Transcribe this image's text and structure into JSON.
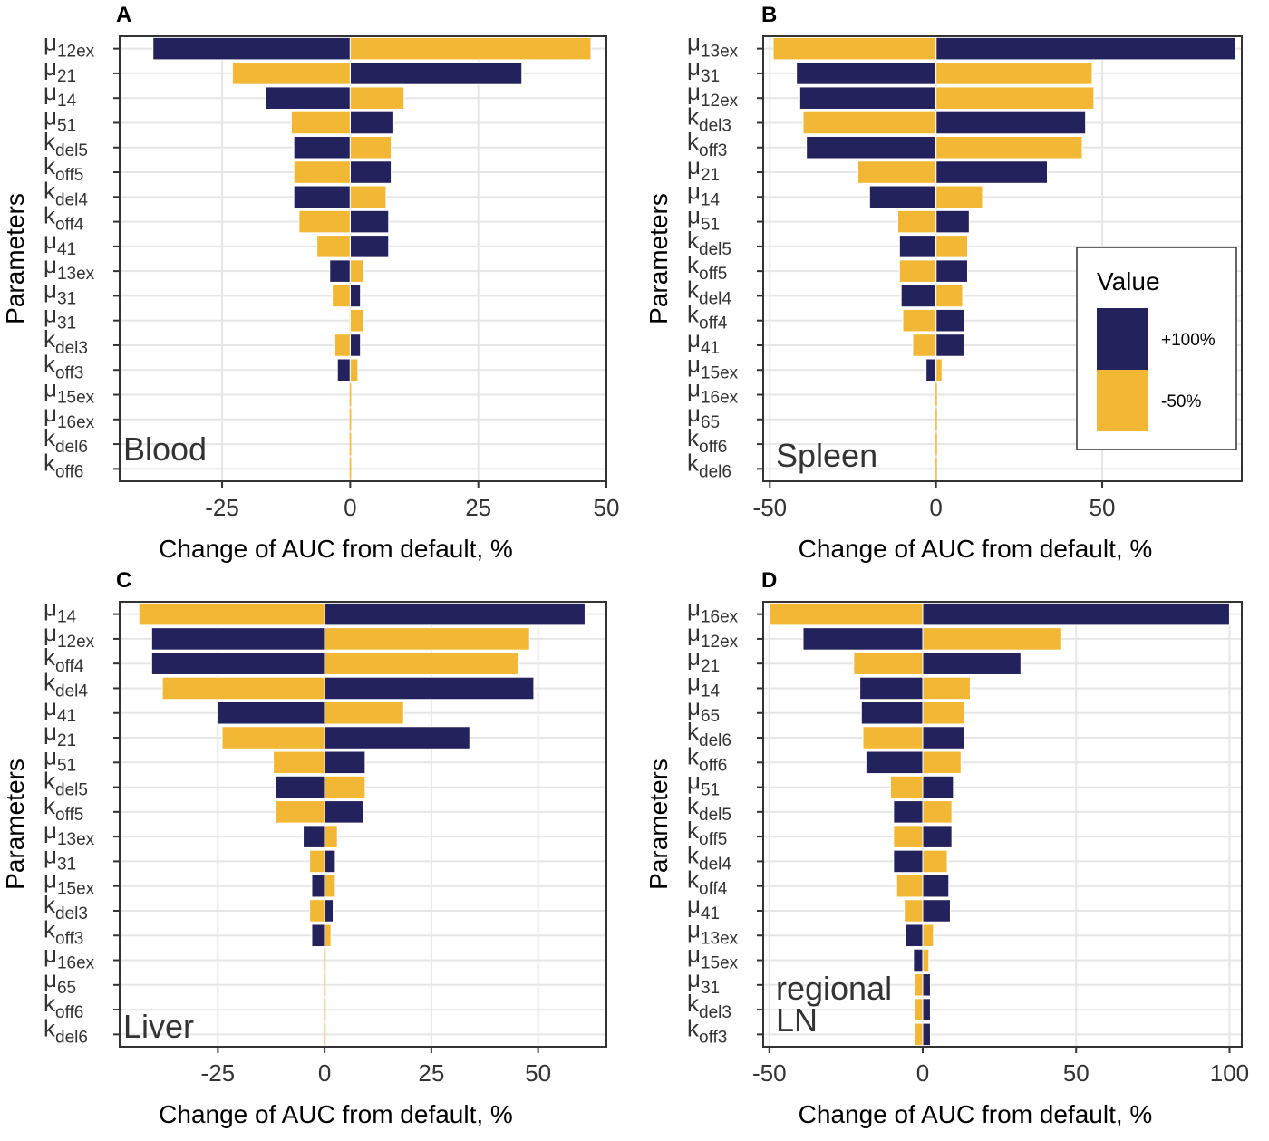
{
  "colors": {
    "increase": "#24225c",
    "decrease": "#f2b835",
    "grid": "#e6e6e6",
    "border": "#333333"
  },
  "legend": {
    "title": "Value",
    "entries": [
      {
        "label": "+100%",
        "color": "#24225c"
      },
      {
        "label": "-50%",
        "color": "#f2b835"
      }
    ]
  },
  "chart_data": [
    {
      "type": "bar",
      "orientation": "horizontal",
      "panel": "A",
      "tissue": "Blood",
      "xlabel": "Change of AUC from default, %",
      "ylabel": "Parameters",
      "xlim": [
        -45,
        50
      ],
      "xticks": [
        "-25",
        "0",
        "25",
        "50"
      ],
      "xtick_values": [
        -25,
        0,
        25,
        50
      ],
      "parameters": [
        {
          "symbol": "μ",
          "sub": "12ex"
        },
        {
          "symbol": "μ",
          "sub": "21"
        },
        {
          "symbol": "μ",
          "sub": "14"
        },
        {
          "symbol": "μ",
          "sub": "51"
        },
        {
          "symbol": "k",
          "sub": "del5"
        },
        {
          "symbol": "k",
          "sub": "off5"
        },
        {
          "symbol": "k",
          "sub": "del4"
        },
        {
          "symbol": "k",
          "sub": "off4"
        },
        {
          "symbol": "μ",
          "sub": "41"
        },
        {
          "symbol": "μ",
          "sub": "13ex"
        },
        {
          "symbol": "μ",
          "sub": "31"
        },
        {
          "symbol": "μ",
          "sub": "31"
        },
        {
          "symbol": "k",
          "sub": "del3"
        },
        {
          "symbol": "k",
          "sub": "off3"
        },
        {
          "symbol": "μ",
          "sub": "15ex"
        },
        {
          "symbol": "μ",
          "sub": "16ex"
        },
        {
          "symbol": "k",
          "sub": "del6"
        },
        {
          "symbol": "k",
          "sub": "off6"
        }
      ],
      "series": [
        {
          "name": "+100%",
          "values": [
            -38.5,
            33.5,
            -16.5,
            8.5,
            -11,
            8,
            -11,
            7.5,
            7.5,
            -4,
            2,
            2,
            2,
            -2.5,
            0,
            0,
            0,
            0
          ]
        },
        {
          "name": "-50%",
          "values": [
            47,
            -23,
            10.5,
            -11.5,
            8,
            -11,
            7,
            -10,
            -6.5,
            2.5,
            -3.5,
            2.5,
            -3,
            1.5,
            0,
            0,
            0,
            0
          ]
        }
      ]
    },
    {
      "type": "bar",
      "orientation": "horizontal",
      "panel": "B",
      "tissue": "Spleen",
      "xlabel": "Change of AUC from default, %",
      "ylabel": "Parameters",
      "xlim": [
        -52,
        92
      ],
      "xticks": [
        "-50",
        "0",
        "50"
      ],
      "xtick_values": [
        -50,
        0,
        50
      ],
      "parameters": [
        {
          "symbol": "μ",
          "sub": "13ex"
        },
        {
          "symbol": "μ",
          "sub": "31"
        },
        {
          "symbol": "μ",
          "sub": "12ex"
        },
        {
          "symbol": "k",
          "sub": "del3"
        },
        {
          "symbol": "k",
          "sub": "off3"
        },
        {
          "symbol": "μ",
          "sub": "21"
        },
        {
          "symbol": "μ",
          "sub": "14"
        },
        {
          "symbol": "μ",
          "sub": "51"
        },
        {
          "symbol": "k",
          "sub": "del5"
        },
        {
          "symbol": "k",
          "sub": "off5"
        },
        {
          "symbol": "k",
          "sub": "del4"
        },
        {
          "symbol": "k",
          "sub": "off4"
        },
        {
          "symbol": "μ",
          "sub": "41"
        },
        {
          "symbol": "μ",
          "sub": "15ex"
        },
        {
          "symbol": "μ",
          "sub": "16ex"
        },
        {
          "symbol": "μ",
          "sub": "65"
        },
        {
          "symbol": "k",
          "sub": "off6"
        },
        {
          "symbol": "k",
          "sub": "del6"
        }
      ],
      "series": [
        {
          "name": "+100%",
          "values": [
            90,
            -42,
            -41,
            45,
            -39,
            33.5,
            -20,
            10,
            -11,
            9.5,
            -10.5,
            8.5,
            8.5,
            -3,
            0,
            0,
            0,
            0
          ]
        },
        {
          "name": "-50%",
          "values": [
            -49,
            47,
            47.5,
            -40,
            44,
            -23.5,
            14,
            -11.5,
            9.5,
            -11,
            8,
            -10,
            -7,
            1.8,
            0,
            0,
            0,
            0
          ]
        }
      ]
    },
    {
      "type": "bar",
      "orientation": "horizontal",
      "panel": "C",
      "tissue": "Liver",
      "xlabel": "Change of AUC from default, %",
      "ylabel": "Parameters",
      "xlim": [
        -48,
        66
      ],
      "xticks": [
        "-25",
        "0",
        "25",
        "50"
      ],
      "xtick_values": [
        -25,
        0,
        25,
        50
      ],
      "parameters": [
        {
          "symbol": "μ",
          "sub": "14"
        },
        {
          "symbol": "μ",
          "sub": "12ex"
        },
        {
          "symbol": "k",
          "sub": "off4"
        },
        {
          "symbol": "k",
          "sub": "del4"
        },
        {
          "symbol": "μ",
          "sub": "41"
        },
        {
          "symbol": "μ",
          "sub": "21"
        },
        {
          "symbol": "μ",
          "sub": "51"
        },
        {
          "symbol": "k",
          "sub": "del5"
        },
        {
          "symbol": "k",
          "sub": "off5"
        },
        {
          "symbol": "μ",
          "sub": "13ex"
        },
        {
          "symbol": "μ",
          "sub": "31"
        },
        {
          "symbol": "μ",
          "sub": "15ex"
        },
        {
          "symbol": "k",
          "sub": "del3"
        },
        {
          "symbol": "k",
          "sub": "off3"
        },
        {
          "symbol": "μ",
          "sub": "16ex"
        },
        {
          "symbol": "μ",
          "sub": "65"
        },
        {
          "symbol": "k",
          "sub": "off6"
        },
        {
          "symbol": "k",
          "sub": "del6"
        }
      ],
      "series": [
        {
          "name": "+100%",
          "values": [
            61,
            -40.5,
            -40.5,
            49,
            -25,
            34,
            9.5,
            -11.5,
            9,
            -5,
            2.5,
            -3,
            2,
            -3,
            0,
            0,
            0,
            0
          ]
        },
        {
          "name": "-50%",
          "values": [
            -43.5,
            48,
            45.5,
            -38,
            18.5,
            -24,
            -12,
            9.5,
            -11.5,
            3,
            -3.5,
            2.5,
            -3.5,
            1.5,
            0,
            0,
            0,
            0
          ]
        }
      ]
    },
    {
      "type": "bar",
      "orientation": "horizontal",
      "panel": "D",
      "tissue": "regional LN",
      "tissue_lines": [
        "regional",
        "LN"
      ],
      "xlabel": "Change of AUC from default, %",
      "ylabel": "Parameters",
      "xlim": [
        -52,
        104
      ],
      "xticks": [
        "-50",
        "0",
        "50",
        "100"
      ],
      "xtick_values": [
        -50,
        0,
        50,
        100
      ],
      "parameters": [
        {
          "symbol": "μ",
          "sub": "16ex"
        },
        {
          "symbol": "μ",
          "sub": "12ex"
        },
        {
          "symbol": "μ",
          "sub": "21"
        },
        {
          "symbol": "μ",
          "sub": "14"
        },
        {
          "symbol": "μ",
          "sub": "65"
        },
        {
          "symbol": "k",
          "sub": "del6"
        },
        {
          "symbol": "k",
          "sub": "off6"
        },
        {
          "symbol": "μ",
          "sub": "51"
        },
        {
          "symbol": "k",
          "sub": "del5"
        },
        {
          "symbol": "k",
          "sub": "off5"
        },
        {
          "symbol": "k",
          "sub": "del4"
        },
        {
          "symbol": "k",
          "sub": "off4"
        },
        {
          "symbol": "μ",
          "sub": "41"
        },
        {
          "symbol": "μ",
          "sub": "13ex"
        },
        {
          "symbol": "μ",
          "sub": "15ex"
        },
        {
          "symbol": "μ",
          "sub": "31"
        },
        {
          "symbol": "k",
          "sub": "del3"
        },
        {
          "symbol": "k",
          "sub": "off3"
        }
      ],
      "series": [
        {
          "name": "+100%",
          "values": [
            100,
            -39,
            32,
            -20.5,
            -20,
            13.5,
            -18.5,
            10,
            -9.5,
            9.5,
            -9.5,
            8.5,
            9,
            -5.5,
            -3,
            2.5,
            2.5,
            2.5
          ]
        },
        {
          "name": "-50%",
          "values": [
            -50,
            45,
            -22.5,
            15.5,
            13.5,
            -19.5,
            12.5,
            -10.5,
            9.5,
            -9.5,
            8,
            -8.5,
            -6,
            3.5,
            2,
            -2.5,
            -2.5,
            -2.5
          ]
        }
      ]
    }
  ]
}
